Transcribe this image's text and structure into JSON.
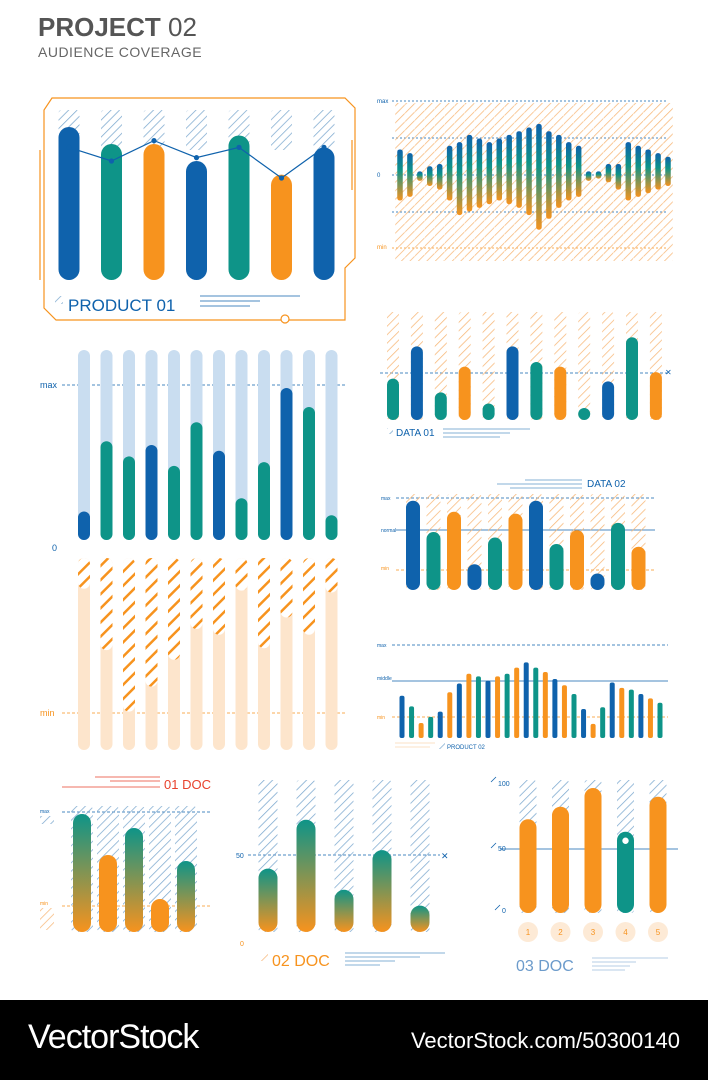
{
  "header": {
    "title_bold": "PROJECT",
    "title_num": "02",
    "subtitle": "AUDIENCE COVERAGE"
  },
  "colors": {
    "blue": "#0F62AC",
    "teal": "#0E9488",
    "orange": "#F7931E",
    "red": "#E8412C",
    "paleblue": "#C9DDF0",
    "peach": "#FDE5CC"
  },
  "footer": {
    "brand": "VectorStock",
    "image_id": "VectorStock.com/50300140"
  },
  "chart_data": [
    {
      "id": "product01",
      "type": "bar",
      "title": "PRODUCT 01",
      "colors": [
        "blue",
        "teal",
        "orange",
        "blue",
        "teal",
        "orange",
        "blue"
      ],
      "values": [
        90,
        80,
        80,
        70,
        85,
        62,
        78
      ],
      "line": [
        78,
        70,
        82,
        72,
        78,
        60,
        78
      ]
    },
    {
      "id": "wave",
      "type": "bar",
      "axis_labels": [
        "max",
        "0",
        "min"
      ],
      "values": [
        [
          35,
          -35
        ],
        [
          30,
          -30
        ],
        [
          5,
          -8
        ],
        [
          12,
          -15
        ],
        [
          15,
          -20
        ],
        [
          40,
          -35
        ],
        [
          45,
          -55
        ],
        [
          55,
          -50
        ],
        [
          50,
          -45
        ],
        [
          45,
          -40
        ],
        [
          50,
          -35
        ],
        [
          55,
          -40
        ],
        [
          60,
          -45
        ],
        [
          65,
          -55
        ],
        [
          70,
          -75
        ],
        [
          60,
          -60
        ],
        [
          55,
          -45
        ],
        [
          45,
          -35
        ],
        [
          40,
          -30
        ],
        [
          5,
          -8
        ],
        [
          -5,
          5
        ],
        [
          -10,
          15
        ],
        [
          15,
          -20
        ],
        [
          45,
          -35
        ],
        [
          40,
          -30
        ],
        [
          35,
          -25
        ],
        [
          30,
          -20
        ],
        [
          25,
          -15
        ]
      ]
    },
    {
      "id": "big",
      "type": "bar",
      "axis_labels": [
        "max",
        "0",
        "min"
      ],
      "top_colors": [
        "blue",
        "teal",
        "teal",
        "blue",
        "teal",
        "teal",
        "blue",
        "teal",
        "teal",
        "blue",
        "teal",
        "teal"
      ],
      "top_values": [
        15,
        52,
        44,
        50,
        39,
        62,
        47,
        22,
        41,
        80,
        70,
        13
      ],
      "bottom_values": [
        16,
        48,
        80,
        67,
        53,
        37,
        40,
        17,
        47,
        31,
        40,
        18
      ]
    },
    {
      "id": "data01",
      "type": "bar",
      "title": "DATA 01",
      "colors": [
        "teal",
        "blue",
        "teal",
        "orange",
        "teal",
        "blue",
        "teal",
        "orange",
        "teal",
        "blue",
        "teal",
        "orange"
      ],
      "values": [
        45,
        80,
        30,
        58,
        18,
        80,
        63,
        58,
        13,
        42,
        90,
        52
      ]
    },
    {
      "id": "data02",
      "type": "bar",
      "title": "DATA 02",
      "axis_labels": [
        "max",
        "normal",
        "min"
      ],
      "colors": [
        "blue",
        "teal",
        "orange",
        "blue",
        "teal",
        "orange",
        "blue",
        "teal",
        "orange",
        "blue",
        "teal",
        "orange"
      ],
      "values": [
        97,
        63,
        85,
        28,
        57,
        83,
        97,
        50,
        65,
        18,
        73,
        47
      ]
    },
    {
      "id": "product02",
      "type": "bar",
      "title": "PRODUCT 02",
      "axis_labels": [
        "max",
        "middle",
        "min"
      ],
      "colors": [
        "blue",
        "teal",
        "orange",
        "teal",
        "blue",
        "orange",
        "blue",
        "orange",
        "teal",
        "blue",
        "orange",
        "teal",
        "orange",
        "blue",
        "teal",
        "orange",
        "blue",
        "orange",
        "teal",
        "blue",
        "orange",
        "teal",
        "blue",
        "orange",
        "teal",
        "blue",
        "orange",
        "teal"
      ],
      "values": [
        48,
        36,
        17,
        24,
        30,
        52,
        62,
        73,
        70,
        65,
        70,
        73,
        80,
        86,
        80,
        75,
        67,
        60,
        50,
        33,
        16,
        35,
        63,
        57,
        55,
        50,
        45,
        40
      ]
    },
    {
      "id": "doc01",
      "type": "bar",
      "title": "01 DOC",
      "axis_labels": [
        "max",
        "min"
      ],
      "values": [
        118,
        77,
        104,
        33,
        71
      ]
    },
    {
      "id": "doc02",
      "type": "bar",
      "title": "02 DOC",
      "axis_labels": [
        "50",
        "0"
      ],
      "values": [
        48,
        85,
        32,
        62,
        20
      ]
    },
    {
      "id": "doc03",
      "type": "bar",
      "title": "03 DOC",
      "axis_labels": [
        "100",
        "50",
        "0"
      ],
      "categories": [
        "1",
        "2",
        "3",
        "4",
        "5"
      ],
      "values": [
        75,
        85,
        100,
        65,
        93
      ],
      "highlight_index": 3
    }
  ]
}
